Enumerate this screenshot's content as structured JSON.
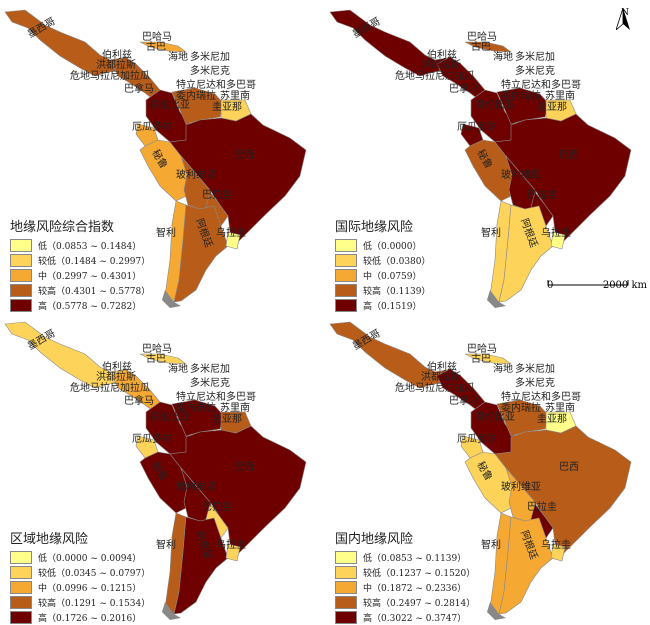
{
  "colors": [
    "#ffff8a",
    "#fdd35a",
    "#f5a832",
    "#b85c1a",
    "#6e0000"
  ],
  "country_labels": {
    "mexico": "墨西哥",
    "bahamas": "巴哈马",
    "cuba": "古巴",
    "belize": "伯利兹",
    "honduras": "洪都拉斯",
    "guatemala_nicaragua": "危地马拉尼加拉瓜",
    "haiti": "海地",
    "dominican": "多米尼加",
    "dominica": "多米尼克",
    "panama": "巴拿马",
    "trinidad": "特立尼达和多巴哥",
    "venezuela": "委内瑞拉",
    "suriname": "苏里南",
    "colombia": "哥伦比亚",
    "guyana": "圭亚那",
    "ecuador": "厄瓜多尔",
    "peru": "秘鲁",
    "brazil": "巴西",
    "bolivia": "玻利维亚",
    "paraguay": "巴拉圭",
    "chile": "智利",
    "argentina": "阿根廷",
    "uruguay": "乌拉圭"
  },
  "north_label": "N",
  "scale_bar": {
    "start": "0",
    "end": "2000 km"
  },
  "panels": [
    {
      "title": "地缘风险综合指数",
      "legend": [
        "低（0.0853 ~ 0.1484）",
        "较低（0.1484 ~ 0.2997）",
        "中（0.2997 ~ 0.4301）",
        "较高（0.4301 ~ 0.5778）",
        "高（0.5778 ~ 0.7282）"
      ],
      "levels": {
        "mexico": 3,
        "central": 3,
        "cuba": 2,
        "colombia": 4,
        "venezuela": 3,
        "guyana": 1,
        "ecuador": 2,
        "peru": 2,
        "brazil": 4,
        "bolivia": 3,
        "paraguay": 3,
        "chile": 2,
        "argentina": 3,
        "uruguay": 0
      }
    },
    {
      "title": "国际地缘风险",
      "legend": [
        "低（0.0000）",
        "较低（0.0380）",
        "中（0.0759）",
        "较高（0.1139）",
        "高（0.1519）"
      ],
      "levels": {
        "mexico": 4,
        "central": 4,
        "cuba": 3,
        "colombia": 4,
        "venezuela": 4,
        "guyana": 1,
        "ecuador": 4,
        "peru": 3,
        "brazil": 4,
        "bolivia": 4,
        "paraguay": 4,
        "chile": 1,
        "argentina": 1,
        "uruguay": 0
      }
    },
    {
      "title": "区域地缘风险",
      "legend": [
        "低（0.0000 ~ 0.0094）",
        "较低（0.0345 ~ 0.0797）",
        "中（0.0996 ~ 0.1215）",
        "较高（0.1291 ~ 0.1534）",
        "高（0.1726 ~ 0.2016）"
      ],
      "levels": {
        "mexico": 1,
        "central": 2,
        "cuba": 1,
        "colombia": 4,
        "venezuela": 4,
        "guyana": 3,
        "ecuador": 1,
        "peru": 4,
        "brazil": 4,
        "bolivia": 4,
        "paraguay": 1,
        "chile": 3,
        "argentina": 4,
        "uruguay": 1
      }
    },
    {
      "title": "国内地缘风险",
      "legend": [
        "低（0.0853 ~ 0.1139）",
        "较低（0.1237 ~ 0.1520）",
        "中（0.1872 ~ 0.2336）",
        "较高（0.2497 ~ 0.2814）",
        "高（0.3022 ~ 0.3747）"
      ],
      "levels": {
        "mexico": 3,
        "central": 4,
        "cuba": 1,
        "colombia": 4,
        "venezuela": 3,
        "guyana": 0,
        "ecuador": 1,
        "peru": 1,
        "brazil": 3,
        "bolivia": 2,
        "paraguay": 4,
        "chile": 2,
        "argentina": 2,
        "uruguay": 1
      }
    }
  ]
}
